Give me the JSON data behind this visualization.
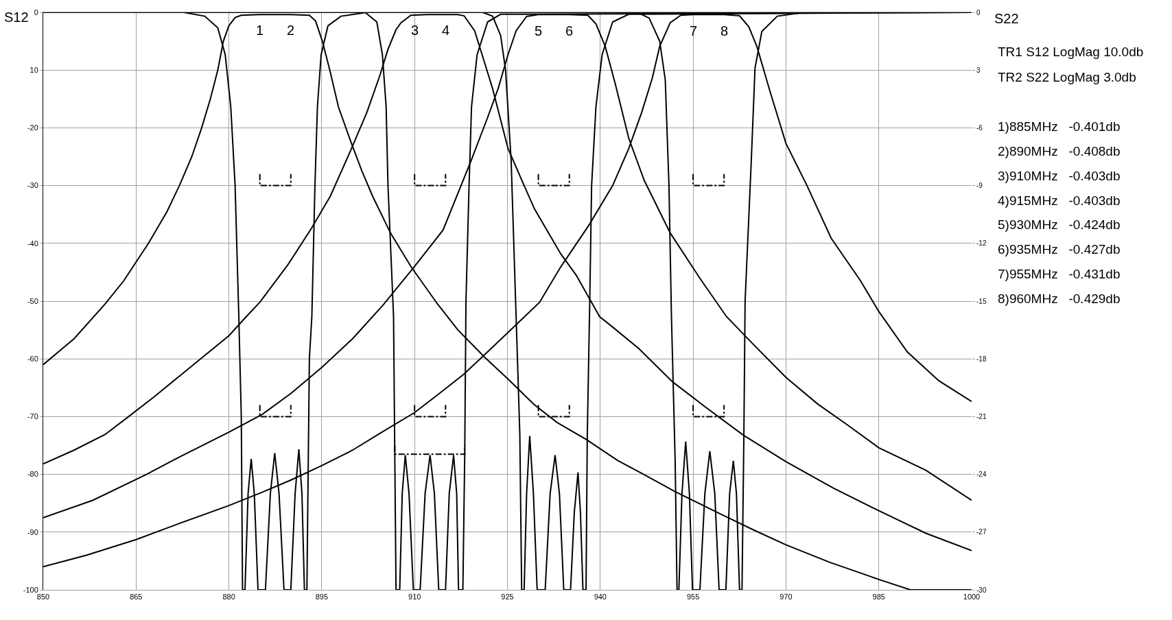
{
  "chart_data": {
    "type": "line",
    "ylabel": "S12",
    "y2label": "S22",
    "xlim": [
      850,
      1000
    ],
    "xticks": [
      850,
      865,
      880,
      895,
      910,
      925,
      940,
      955,
      970,
      985,
      1000
    ],
    "ylim": [
      -100,
      0
    ],
    "yticks": [
      0,
      {
        "value": -10,
        "label": "10"
      },
      -20,
      -30,
      -40,
      -50,
      -60,
      -70,
      -80,
      -90,
      -100
    ],
    "y2lim": [
      -30,
      0
    ],
    "y2ticks": [
      0,
      {
        "value": -3,
        "label": "3"
      },
      -6,
      -9,
      -12,
      -15,
      -18,
      -21,
      -24,
      -27,
      -30
    ],
    "grid": true,
    "marker": "none",
    "line_style": "solid",
    "series": [
      {
        "color": "#000000",
        "x": [
          850,
          855,
          860,
          863,
          867,
          870,
          872,
          874,
          875.6,
          877,
          878.2,
          879.1,
          880,
          881,
          882,
          885,
          890,
          893,
          894,
          895.1,
          896.3,
          897.7,
          899.8,
          901.5,
          903.2,
          906.1,
          909.4,
          913.7,
          917,
          921.3,
          925.1,
          929.3,
          933,
          937.8,
          942.8,
          947,
          952.1,
          958.9,
          964.9,
          970,
          977,
          985,
          990.1,
          1000
        ],
        "values": [
          -61,
          -56.5,
          -50.5,
          -46.5,
          -40,
          -34.5,
          -30,
          -25,
          -20,
          -15,
          -10,
          -5,
          -2.3,
          -0.9,
          -0.5,
          -0.4,
          -0.4,
          -0.5,
          -1.5,
          -5,
          -10,
          -16.4,
          -22.7,
          -27.5,
          -31.8,
          -38.2,
          -44,
          -50.5,
          -55,
          -59.7,
          -63.5,
          -67.9,
          -71,
          -74,
          -77.6,
          -80,
          -83,
          -86.6,
          -89.7,
          -92.2,
          -95.2,
          -98.2,
          -100,
          -100
        ]
      },
      {
        "color": "#000000",
        "x": [
          850,
          855,
          860,
          863.8,
          868,
          872,
          876,
          880,
          882.8,
          885,
          889.6,
          893.4,
          896.4,
          899.8,
          902.3,
          904.4,
          905.7,
          907,
          907.8,
          909.4,
          912,
          915,
          917,
          918,
          919.7,
          920.9,
          922.6,
          925.1,
          927.7,
          929.4,
          933.6,
          936.1,
          939.9,
          942,
          946.2,
          951.7,
          956.8,
          963.1,
          970,
          977.7,
          985,
          992.6,
          1000
        ],
        "values": [
          -78.2,
          -75.8,
          -73.1,
          -70,
          -66.5,
          -63,
          -59.5,
          -56,
          -52.7,
          -50.2,
          -43.6,
          -37.3,
          -31.8,
          -23.6,
          -17.3,
          -10.9,
          -6.4,
          -3,
          -1.8,
          -0.5,
          -0.4,
          -0.4,
          -0.4,
          -0.6,
          -3.2,
          -7.3,
          -13.2,
          -23.6,
          -30,
          -34.1,
          -41.8,
          -45.5,
          -52.7,
          -54.5,
          -58.2,
          -64,
          -68.2,
          -73.2,
          -77.8,
          -82.4,
          -86.3,
          -90.2,
          -93.2
        ]
      },
      {
        "color": "#000000",
        "x": [
          850,
          858,
          866.7,
          872,
          880,
          885.4,
          890,
          895,
          900,
          904.9,
          910,
          914.6,
          919.2,
          921.8,
          923.5,
          925.1,
          926.4,
          928.1,
          930,
          935,
          938,
          939.3,
          940.8,
          942.4,
          944.6,
          947.1,
          951.3,
          956,
          960.4,
          965,
          970,
          975.1,
          980,
          985,
          992.6,
          1000
        ],
        "values": [
          -87.5,
          -84.5,
          -80,
          -77,
          -72.7,
          -69.6,
          -66,
          -61.5,
          -56.5,
          -50.7,
          -44,
          -37.7,
          -25.5,
          -18.2,
          -13.2,
          -7.3,
          -3.2,
          -0.7,
          -0.4,
          -0.4,
          -0.5,
          -2,
          -5.9,
          -12.3,
          -21.8,
          -29.1,
          -38.2,
          -45.9,
          -52.7,
          -57.8,
          -63.2,
          -67.8,
          -71.5,
          -75.4,
          -79.3,
          -84.5
        ]
      },
      {
        "color": "#000000",
        "x": [
          850,
          857,
          865,
          872,
          880,
          885.4,
          890,
          895,
          900,
          904.4,
          910,
          914,
          917.9,
          921.3,
          926.4,
          930.2,
          933.6,
          938.2,
          942,
          944.6,
          946.7,
          948.4,
          949.6,
          951.3,
          953,
          955,
          960,
          962.5,
          964,
          965.3,
          967.4,
          970,
          973.4,
          977.3,
          982,
          985,
          989.6,
          994.7,
          1000
        ],
        "values": [
          -96,
          -94,
          -91.3,
          -88.5,
          -85.4,
          -83.1,
          -81,
          -78.5,
          -75.8,
          -72.9,
          -69.3,
          -66,
          -62.7,
          -59.3,
          -54.1,
          -50.2,
          -44.1,
          -36.8,
          -30,
          -23.6,
          -17.3,
          -11.4,
          -5.9,
          -1.8,
          -0.5,
          -0.4,
          -0.4,
          -0.6,
          -2.5,
          -5.9,
          -13.6,
          -22.7,
          -30,
          -39.1,
          -46.4,
          -51.8,
          -58.8,
          -63.8,
          -67.4
        ]
      },
      {
        "color": "#000000",
        "axis": "y2",
        "x": [
          850,
          872.7,
          876.1,
          878.2,
          879.4,
          880.3,
          881,
          881.6,
          882,
          882.2,
          882.6,
          883.1,
          883.6,
          884.1,
          884.7,
          885.9,
          886.7,
          887.4,
          888.1,
          888.9,
          890,
          890.7,
          891.3,
          891.8,
          892.2,
          892.6,
          893,
          893.4,
          893.9,
          894.3,
          894.9,
          896,
          898.1,
          902.3,
          1000
        ],
        "values": [
          0,
          0,
          -0.2,
          -0.8,
          -2.2,
          -4.9,
          -9,
          -15.8,
          -21,
          -30,
          -30,
          -25,
          -23.2,
          -25,
          -30,
          -30,
          -25,
          -22.9,
          -25,
          -30,
          -30,
          -25,
          -22.7,
          -25,
          -30,
          -30,
          -18,
          -15.8,
          -9,
          -4.9,
          -2.2,
          -0.7,
          -0.2,
          0,
          0
        ]
      },
      {
        "color": "#000000",
        "axis": "y2",
        "x": [
          850,
          902,
          903.9,
          904.8,
          905.4,
          905.7,
          906.1,
          906.6,
          906.8,
          907,
          907.6,
          908,
          908.5,
          909.1,
          909.8,
          910.9,
          911.7,
          912.5,
          913.2,
          913.9,
          915,
          915.6,
          916.3,
          916.8,
          917.1,
          917.8,
          918.1,
          918.3,
          918.8,
          919.2,
          920.1,
          921.8,
          923.9,
          1000
        ],
        "values": [
          0,
          0,
          -0.5,
          -2.2,
          -4.9,
          -9,
          -12,
          -15.8,
          -23,
          -30,
          -30,
          -25,
          -23,
          -25,
          -30,
          -30,
          -25,
          -23,
          -25,
          -30,
          -30,
          -25,
          -23,
          -25,
          -30,
          -30,
          -23,
          -15,
          -9,
          -4.9,
          -2.2,
          -0.5,
          -0.1,
          0
        ]
      },
      {
        "color": "#000000",
        "axis": "y2",
        "x": [
          850,
          921,
          922.6,
          923.9,
          924.7,
          925.6,
          926.4,
          927,
          927.3,
          927.7,
          928.1,
          928.6,
          929.2,
          929.8,
          931.1,
          931.9,
          932.7,
          933.4,
          934.1,
          935.2,
          935.8,
          936.4,
          936.8,
          937.2,
          937.7,
          937.9,
          938.3,
          938.6,
          939.3,
          940.3,
          942,
          944.6,
          1000
        ],
        "values": [
          0,
          0,
          -0.2,
          -1.2,
          -3,
          -7.7,
          -15.8,
          -21.9,
          -30,
          -30,
          -25,
          -22,
          -25,
          -30,
          -30,
          -25,
          -23,
          -25,
          -30,
          -30,
          -26,
          -23.9,
          -26,
          -30,
          -30,
          -22,
          -15,
          -9,
          -4.9,
          -2.2,
          -0.5,
          -0.1,
          0
        ]
      },
      {
        "color": "#000000",
        "axis": "y2",
        "x": [
          850,
          946,
          947.9,
          949.6,
          950.5,
          951.1,
          951.5,
          952.1,
          952.4,
          952.7,
          953.2,
          953.8,
          954.4,
          954.9,
          956.1,
          956.9,
          957.7,
          958.5,
          959.2,
          960.3,
          960.9,
          961.5,
          962,
          962.5,
          962.9,
          963.2,
          963.4,
          964.4,
          965,
          966.1,
          968.6,
          973,
          1000
        ],
        "values": [
          0,
          0,
          -0.3,
          -1.5,
          -3.5,
          -9,
          -15.8,
          -23.3,
          -30,
          -30,
          -25,
          -22.3,
          -25,
          -30,
          -30,
          -25,
          -22.8,
          -25,
          -30,
          -30,
          -25,
          -23.3,
          -25,
          -30,
          -30,
          -22,
          -15,
          -7.7,
          -2.9,
          -1,
          -0.2,
          0,
          0
        ]
      },
      {
        "color": "#000000",
        "line_style": "dashed",
        "x": [
          885,
          885,
          890,
          890
        ],
        "values": [
          -28,
          -30,
          -30,
          -28
        ]
      },
      {
        "color": "#000000",
        "line_style": "dashed",
        "x": [
          910,
          910,
          915,
          915
        ],
        "values": [
          -28,
          -30,
          -30,
          -28
        ]
      },
      {
        "color": "#000000",
        "line_style": "dashed",
        "x": [
          930,
          930,
          935,
          935
        ],
        "values": [
          -28,
          -30,
          -30,
          -28
        ]
      },
      {
        "color": "#000000",
        "line_style": "dashed",
        "x": [
          955,
          955,
          960,
          960
        ],
        "values": [
          -28,
          -30,
          -30,
          -28
        ]
      },
      {
        "color": "#000000",
        "line_style": "dashed",
        "x": [
          885,
          885,
          890,
          890
        ],
        "values": [
          -68,
          -70,
          -70,
          -68
        ]
      },
      {
        "color": "#000000",
        "line_style": "dashed",
        "x": [
          910,
          910,
          915,
          915
        ],
        "values": [
          -68,
          -70,
          -70,
          -68
        ]
      },
      {
        "color": "#000000",
        "line_style": "dashed",
        "x": [
          930,
          930,
          935,
          935
        ],
        "values": [
          -68,
          -70,
          -70,
          -68
        ]
      },
      {
        "color": "#000000",
        "line_style": "dashed",
        "x": [
          955,
          955,
          960,
          960
        ],
        "values": [
          -68,
          -70,
          -70,
          -68
        ]
      },
      {
        "color": "#000000",
        "line_style": "dashed",
        "x": [
          906.8,
          906.8,
          918.1,
          918.1
        ],
        "values": [
          -75,
          -76.5,
          -76.5,
          -75
        ]
      }
    ],
    "annotations": [
      {
        "text": "1",
        "x": 885,
        "y": -0.401
      },
      {
        "text": "2",
        "x": 890,
        "y": -0.408
      },
      {
        "text": "3",
        "x": 910,
        "y": -0.403
      },
      {
        "text": "4",
        "x": 915,
        "y": -0.403
      },
      {
        "text": "5",
        "x": 930,
        "y": -0.424
      },
      {
        "text": "6",
        "x": 935,
        "y": -0.427
      },
      {
        "text": "7",
        "x": 955,
        "y": -0.431
      },
      {
        "text": "8",
        "x": 960,
        "y": -0.429
      },
      "TR1 S12 LogMag 10.0db",
      "TR2 S22 LogMag 3.0db",
      "1)885MHz   -0.401db",
      "2)890MHz   -0.408db",
      "3)910MHz   -0.403db",
      "4)915MHz   -0.403db",
      "5)930MHz   -0.424db",
      "6)935MHz   -0.427db",
      "7)955MHz   -0.431db",
      "8)960MHz   -0.429db"
    ]
  }
}
